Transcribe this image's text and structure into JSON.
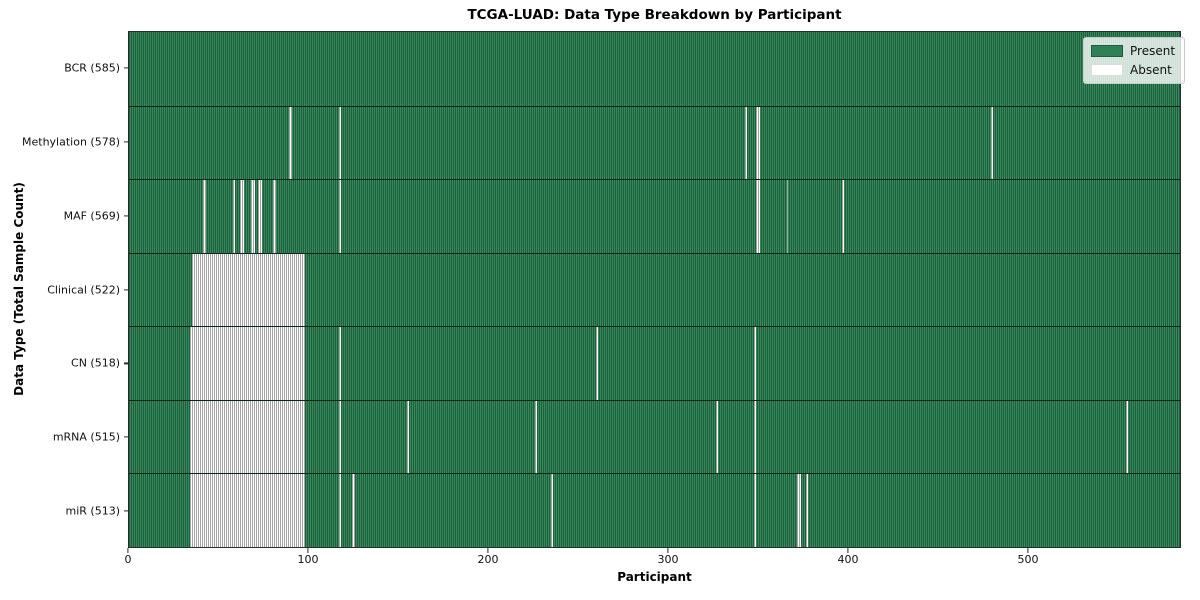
{
  "title": "TCGA-LUAD: Data Type Breakdown by Participant",
  "x_axis_label": "Participant",
  "y_axis_label": "Data Type (Total Sample Count)",
  "legend": {
    "present_label": "Present",
    "absent_label": "Absent"
  },
  "colors": {
    "present_fill": "#348a5b",
    "present_edge": "#205f3e",
    "absent_fill": "#ffffff",
    "absent_edge": "#a3a3a3",
    "row_separator": "#0a180e",
    "frame": "#2b2b2b"
  },
  "chart_data": {
    "type": "heatmap",
    "title": "TCGA-LUAD: Data Type Breakdown by Participant",
    "xlabel": "Participant",
    "ylabel": "Data Type (Total Sample Count)",
    "legend_entries": [
      "Present",
      "Absent"
    ],
    "legend_position": "upper right",
    "grid": false,
    "x_ticks": [
      0,
      100,
      200,
      300,
      400,
      500
    ],
    "x_range": [
      0,
      585
    ],
    "total_participants": 585,
    "rows": [
      {
        "label": "BCR (585)",
        "data_type": "BCR",
        "present_count": 585,
        "absent_count": 0,
        "absent_ranges": []
      },
      {
        "label": "Methylation (578)",
        "data_type": "Methylation",
        "present_count": 578,
        "absent_count": 7,
        "absent_ranges": [
          [
            89,
            90
          ],
          [
            117,
            117
          ],
          [
            343,
            343
          ],
          [
            349,
            350
          ],
          [
            480,
            480
          ]
        ]
      },
      {
        "label": "MAF (569)",
        "data_type": "MAF",
        "present_count": 569,
        "absent_count": 16,
        "absent_ranges": [
          [
            41,
            42
          ],
          [
            58,
            58
          ],
          [
            62,
            63
          ],
          [
            68,
            69
          ],
          [
            72,
            73
          ],
          [
            80,
            81
          ],
          [
            117,
            117
          ],
          [
            349,
            350
          ],
          [
            366,
            366
          ],
          [
            397,
            397
          ]
        ]
      },
      {
        "label": "Clinical (522)",
        "data_type": "Clinical",
        "present_count": 522,
        "absent_count": 63,
        "absent_ranges": [
          [
            35,
            97
          ]
        ]
      },
      {
        "label": "CN (518)",
        "data_type": "CN",
        "present_count": 518,
        "absent_count": 67,
        "absent_ranges": [
          [
            34,
            97
          ],
          [
            117,
            117
          ],
          [
            260,
            260
          ],
          [
            348,
            348
          ]
        ]
      },
      {
        "label": "mRNA (515)",
        "data_type": "mRNA",
        "present_count": 515,
        "absent_count": 70,
        "absent_ranges": [
          [
            34,
            97
          ],
          [
            117,
            117
          ],
          [
            155,
            155
          ],
          [
            226,
            226
          ],
          [
            327,
            327
          ],
          [
            348,
            348
          ],
          [
            555,
            555
          ]
        ]
      },
      {
        "label": "miR (513)",
        "data_type": "miR",
        "present_count": 513,
        "absent_count": 72,
        "absent_ranges": [
          [
            34,
            97
          ],
          [
            117,
            117
          ],
          [
            124,
            125
          ],
          [
            235,
            235
          ],
          [
            348,
            348
          ],
          [
            372,
            373
          ],
          [
            377,
            377
          ]
        ]
      }
    ]
  }
}
